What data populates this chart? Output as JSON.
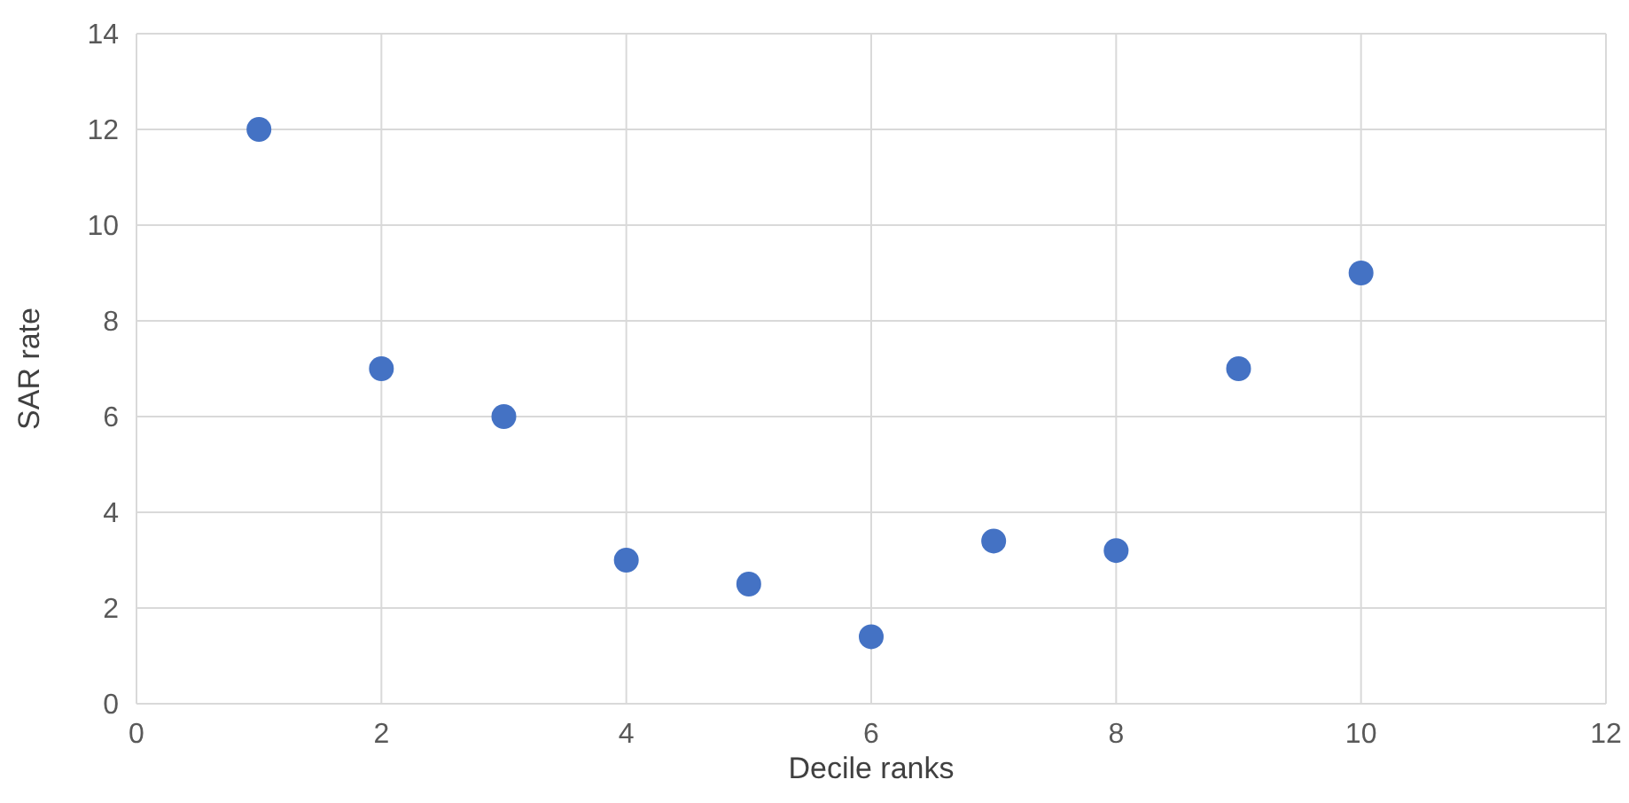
{
  "chart_data": {
    "type": "scatter",
    "xlabel": "Decile ranks",
    "ylabel": "SAR rate",
    "x": [
      1,
      2,
      3,
      4,
      5,
      6,
      7,
      8,
      9,
      10
    ],
    "series": [
      {
        "color": "#4472c4",
        "values": [
          12,
          7,
          6,
          3,
          2.5,
          1.4,
          3.4,
          3.2,
          7,
          9
        ]
      }
    ],
    "xlim": [
      0,
      12
    ],
    "xticks": [
      0,
      2,
      4,
      6,
      8,
      10,
      12
    ],
    "ylim": [
      0,
      14
    ],
    "yticks": [
      0,
      2,
      4,
      6,
      8,
      10,
      12,
      14
    ],
    "grid": true,
    "marker": "circle"
  }
}
